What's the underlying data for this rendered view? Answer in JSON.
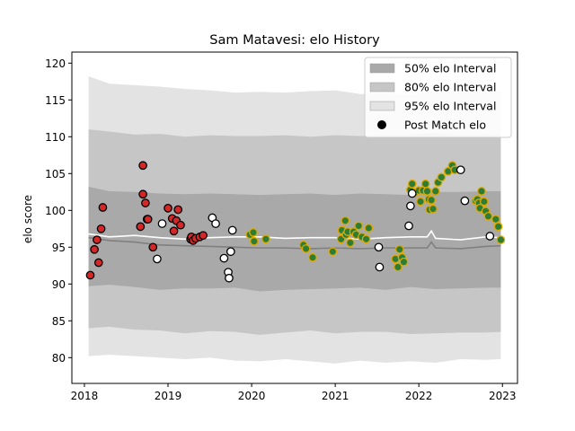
{
  "chart_data": {
    "type": "scatter",
    "title": "Sam Matavesi: elo History",
    "xlabel": "",
    "ylabel": "elo score",
    "xlim": [
      2017.85,
      2023.18
    ],
    "ylim": [
      76.5,
      121.5
    ],
    "x_ticks": [
      2018,
      2019,
      2020,
      2021,
      2022,
      2023
    ],
    "x_tick_labels": [
      "2018",
      "2019",
      "2020",
      "2021",
      "2022",
      "2023"
    ],
    "y_ticks": [
      80,
      85,
      90,
      95,
      100,
      105,
      110,
      115,
      120
    ],
    "y_tick_labels": [
      "80",
      "85",
      "90",
      "95",
      "100",
      "105",
      "110",
      "115",
      "120"
    ],
    "grid": false,
    "legend_position": "top-right",
    "legend": [
      {
        "label": "50% elo Interval",
        "kind": "band",
        "color": "#a9a9a9"
      },
      {
        "label": "80% elo Interval",
        "kind": "band",
        "color": "#c6c6c6"
      },
      {
        "label": "95% elo Interval",
        "kind": "band",
        "color": "#e3e3e3"
      },
      {
        "label": "Post Match elo",
        "kind": "marker",
        "color": "#000000"
      }
    ],
    "intervals": {
      "x": [
        2018.05,
        2018.3,
        2018.6,
        2018.9,
        2019.2,
        2019.5,
        2019.8,
        2020.1,
        2020.4,
        2020.7,
        2021.0,
        2021.3,
        2021.6,
        2021.9,
        2022.2,
        2022.5,
        2022.8,
        2022.98
      ],
      "band95": {
        "upper": [
          118.2,
          117.2,
          117.0,
          116.8,
          116.5,
          116.3,
          116.0,
          116.1,
          116.0,
          116.2,
          116.3,
          115.8,
          115.9,
          115.7,
          116.2,
          116.0,
          116.1,
          116.3
        ],
        "lower": [
          80.2,
          80.4,
          80.2,
          80.0,
          79.8,
          80.0,
          79.6,
          79.5,
          79.8,
          79.5,
          79.2,
          79.6,
          79.3,
          79.5,
          79.3,
          79.8,
          79.7,
          79.8
        ]
      },
      "band80": {
        "upper": [
          111.0,
          110.7,
          110.3,
          110.4,
          110.0,
          110.2,
          110.1,
          110.1,
          110.2,
          110.0,
          110.2,
          110.1,
          110.2,
          110.3,
          110.5,
          110.2,
          110.3,
          110.2
        ],
        "lower": [
          84.0,
          84.2,
          83.8,
          83.7,
          83.3,
          83.6,
          83.5,
          83.1,
          83.4,
          83.7,
          83.3,
          83.5,
          83.5,
          83.2,
          83.3,
          83.4,
          83.4,
          83.5
        ]
      },
      "band50": {
        "upper": [
          103.2,
          102.6,
          102.5,
          102.3,
          102.2,
          102.3,
          102.2,
          102.1,
          102.2,
          102.3,
          102.1,
          102.3,
          102.2,
          102.1,
          102.5,
          102.5,
          102.6,
          102.6
        ],
        "lower": [
          89.7,
          89.9,
          89.6,
          89.2,
          89.4,
          89.4,
          89.5,
          89.0,
          89.2,
          89.3,
          89.4,
          89.5,
          89.2,
          89.6,
          89.3,
          89.4,
          89.5,
          89.5
        ]
      }
    },
    "series": [
      {
        "kind": "line",
        "color": "#ffffff",
        "x": [
          2018.05,
          2018.3,
          2018.6,
          2018.9,
          2019.2,
          2019.5,
          2019.8,
          2020.1,
          2020.4,
          2020.7,
          2021.0,
          2021.3,
          2021.6,
          2021.9,
          2022.1,
          2022.15,
          2022.2,
          2022.5,
          2022.8,
          2022.98
        ],
        "y": [
          96.8,
          96.4,
          96.6,
          96.3,
          96.1,
          96.3,
          96.4,
          96.4,
          96.2,
          96.3,
          96.3,
          96.1,
          96.3,
          96.4,
          96.4,
          97.2,
          96.2,
          96.0,
          96.4,
          96.3
        ]
      },
      {
        "kind": "line",
        "color": "#808080",
        "x": [
          2018.05,
          2018.3,
          2018.6,
          2018.9,
          2019.2,
          2019.5,
          2019.8,
          2020.1,
          2020.4,
          2020.7,
          2021.0,
          2021.3,
          2021.6,
          2021.9,
          2022.1,
          2022.15,
          2022.2,
          2022.5,
          2022.8,
          2022.98
        ],
        "y": [
          96.3,
          95.9,
          95.7,
          95.3,
          95.2,
          95.1,
          95.0,
          94.9,
          94.9,
          94.8,
          94.9,
          94.8,
          94.9,
          94.9,
          94.9,
          95.7,
          94.9,
          94.8,
          95.1,
          95.2
        ]
      },
      {
        "kind": "points",
        "fill": "#d62728",
        "stroke": "#000000",
        "x": [
          2018.07,
          2018.12,
          2018.15,
          2018.17,
          2018.2,
          2018.22,
          2018.67,
          2018.7,
          2018.7,
          2018.73,
          2018.75,
          2018.76,
          2018.82,
          2019.0,
          2019.05,
          2019.07,
          2019.1,
          2019.12,
          2019.15,
          2019.27,
          2019.28,
          2019.3,
          2019.33,
          2019.38,
          2019.42
        ],
        "y": [
          91.2,
          94.7,
          96.0,
          92.9,
          97.5,
          100.4,
          97.8,
          106.1,
          102.2,
          101.0,
          98.8,
          98.8,
          95.0,
          100.3,
          98.9,
          97.2,
          98.6,
          100.1,
          98.0,
          96.1,
          96.4,
          95.9,
          96.2,
          96.4,
          96.6
        ]
      },
      {
        "kind": "points",
        "fill": "#2e7d32",
        "stroke": "#e0a800",
        "x": [
          2019.98,
          2020.02,
          2020.03,
          2020.17,
          2020.62,
          2020.65,
          2020.73,
          2020.97,
          2021.07,
          2021.08,
          2021.12,
          2021.13,
          2021.15,
          2021.18,
          2021.22,
          2021.25,
          2021.28,
          2021.32,
          2021.37,
          2021.4,
          2021.72,
          2021.75,
          2021.77,
          2021.8,
          2021.82,
          2021.9,
          2021.92,
          2021.95,
          2022.0,
          2022.02,
          2022.05,
          2022.08,
          2022.1,
          2022.12,
          2022.13,
          2022.15,
          2022.17,
          2022.2,
          2022.23,
          2022.27,
          2022.35,
          2022.4,
          2022.43,
          2022.68,
          2022.7,
          2022.72,
          2022.73,
          2022.75,
          2022.78,
          2022.8,
          2022.83,
          2022.92,
          2022.95,
          2022.98
        ],
        "y": [
          96.7,
          97.0,
          95.8,
          96.1,
          95.3,
          94.8,
          93.6,
          94.4,
          96.1,
          97.3,
          98.6,
          96.7,
          97.1,
          95.6,
          97.1,
          96.7,
          97.9,
          96.4,
          96.1,
          97.6,
          93.4,
          92.3,
          94.7,
          93.6,
          93.0,
          102.8,
          103.6,
          102.4,
          102.7,
          101.2,
          102.7,
          103.6,
          102.6,
          101.5,
          100.1,
          101.4,
          100.2,
          102.6,
          103.8,
          104.5,
          105.3,
          106.1,
          105.5,
          101.3,
          101.5,
          101.0,
          100.3,
          102.6,
          101.2,
          99.9,
          99.2,
          98.8,
          97.8,
          96.0
        ]
      },
      {
        "kind": "points",
        "fill": "#ffffff",
        "stroke": "#000000",
        "x": [
          2018.87,
          2018.93,
          2019.53,
          2019.57,
          2019.67,
          2019.72,
          2019.73,
          2019.75,
          2019.77,
          2021.52,
          2021.53,
          2021.88,
          2021.9,
          2021.92,
          2022.5,
          2022.55,
          2022.85
        ],
        "y": [
          93.4,
          98.2,
          99.0,
          98.2,
          93.5,
          91.6,
          90.8,
          94.4,
          97.3,
          95.0,
          92.3,
          97.9,
          100.6,
          102.3,
          105.5,
          101.3,
          96.5
        ]
      }
    ]
  }
}
